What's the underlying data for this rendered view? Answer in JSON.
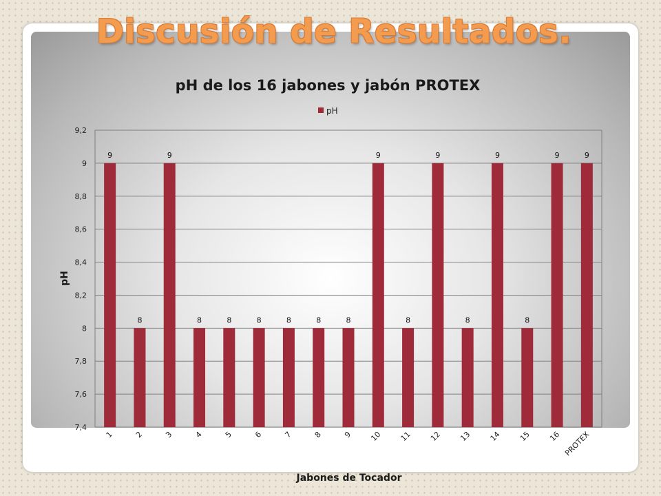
{
  "slide": {
    "title": "Discusión de Resultados."
  },
  "colors": {
    "bar": "#9e2a3a",
    "title": "#f39b4e"
  },
  "chart_data": {
    "type": "bar",
    "title": "pH de los 16 jabones y jabón PROTEX",
    "xlabel": "Jabones de Tocador",
    "ylabel": "pH",
    "categories": [
      "1",
      "2",
      "3",
      "4",
      "5",
      "6",
      "7",
      "8",
      "9",
      "10",
      "11",
      "12",
      "13",
      "14",
      "15",
      "16",
      "PROTEX"
    ],
    "series": [
      {
        "name": "pH",
        "values": [
          9,
          8,
          9,
          8,
          8,
          8,
          8,
          8,
          8,
          9,
          8,
          9,
          8,
          9,
          8,
          9,
          9
        ]
      }
    ],
    "data_labels": [
      "9",
      "8",
      "9",
      "8",
      "8",
      "8",
      "8",
      "8",
      "8",
      "9",
      "8",
      "9",
      "8",
      "9",
      "8",
      "9",
      "9"
    ],
    "ylim": [
      7.4,
      9.2
    ],
    "yticks": [
      7.4,
      7.6,
      7.8,
      8,
      8.2,
      8.4,
      8.6,
      8.8,
      9,
      9.2
    ],
    "ytick_labels": [
      "7,4",
      "7,6",
      "7,8",
      "8",
      "8,2",
      "8,4",
      "8,6",
      "8,8",
      "9",
      "9,2"
    ],
    "grid": true,
    "legend_position": "top"
  }
}
